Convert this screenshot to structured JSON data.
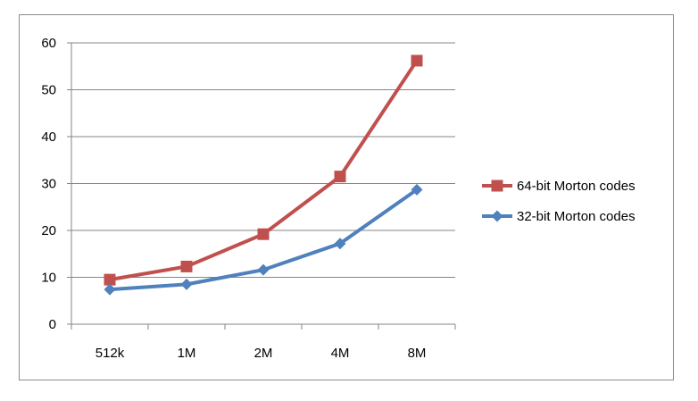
{
  "chart_data": {
    "type": "line",
    "title": "",
    "xlabel": "",
    "ylabel": "",
    "categories": [
      "512k",
      "1M",
      "2M",
      "4M",
      "8M"
    ],
    "ylim": [
      0,
      60
    ],
    "yticks": [
      0,
      10,
      20,
      30,
      40,
      50,
      60
    ],
    "grid": "horizontal",
    "legend_position": "right",
    "series": [
      {
        "name": "64-bit Morton codes",
        "color": "#c0504d",
        "marker": "square",
        "values": [
          9.5,
          12.3,
          19.2,
          31.5,
          56.2
        ]
      },
      {
        "name": "32-bit Morton codes",
        "color": "#4f81bd",
        "marker": "diamond",
        "values": [
          7.4,
          8.5,
          11.6,
          17.2,
          28.7
        ]
      }
    ]
  }
}
